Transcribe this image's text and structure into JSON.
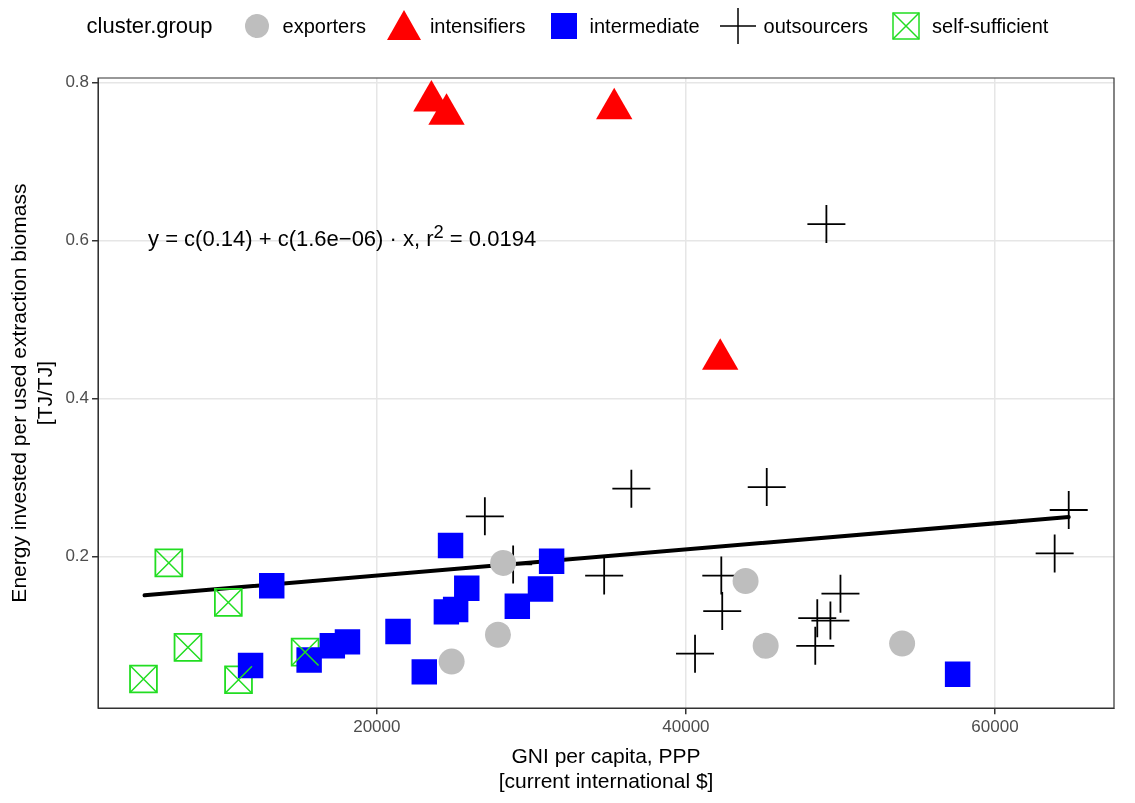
{
  "chart_data": {
    "type": "scatter",
    "xlabel": "GNI per capita, PPP\n[current international $]",
    "ylabel": "Energy invested per used extraction biomass\n[TJ/TJ]",
    "legend_title": "cluster.group",
    "legend": "top",
    "grid": true,
    "xlim": [
      1960,
      67700
    ],
    "ylim": [
      0.008,
      0.806
    ],
    "xticks": [
      20000,
      40000,
      60000
    ],
    "yticks": [
      0.2,
      0.4,
      0.6,
      0.8
    ],
    "annotations": [
      "y = c(0.14) + c(1.6e−06) · x,  r$^{2}$ = 0.0194"
    ],
    "series": [
      {
        "name": "exporters",
        "color": "#bebebe",
        "marker": "circle",
        "x": [
          28170,
          27840,
          24840,
          43860,
          45160,
          53990
        ],
        "values": [
          0.192,
          0.101,
          0.067,
          0.169,
          0.087,
          0.09
        ]
      },
      {
        "name": "intensifiers",
        "color": "#ff0000",
        "marker": "triangle",
        "x": [
          23530,
          24510,
          35360,
          42220
        ],
        "values": [
          0.777,
          0.76,
          0.767,
          0.45
        ]
      },
      {
        "name": "intermediate",
        "color": "#0000ff",
        "marker": "square",
        "x": [
          13200,
          24770,
          25820,
          24500,
          25100,
          31310,
          30590,
          29090,
          21370,
          18100,
          17120,
          15620,
          11830,
          23070,
          57580
        ],
        "values": [
          0.163,
          0.214,
          0.16,
          0.13,
          0.133,
          0.194,
          0.159,
          0.137,
          0.105,
          0.092,
          0.087,
          0.069,
          0.062,
          0.054,
          0.051
        ]
      },
      {
        "name": "outsourcers",
        "color": "#000000",
        "marker": "cross",
        "x": [
          49090,
          26990,
          28820,
          34710,
          36470,
          45230,
          64770,
          63860,
          42290,
          42350,
          40590,
          50000,
          48500,
          49350,
          48370
        ],
        "values": [
          0.621,
          0.251,
          0.19,
          0.176,
          0.286,
          0.288,
          0.259,
          0.204,
          0.176,
          0.131,
          0.077,
          0.153,
          0.122,
          0.119,
          0.087
        ]
      },
      {
        "name": "self-sufficient",
        "color": "#22dd22",
        "marker": "square-cross",
        "x": [
          6540,
          10390,
          7780,
          4900,
          11050,
          15360
        ],
        "values": [
          0.192,
          0.142,
          0.085,
          0.045,
          0.044,
          0.079
        ]
      },
      {
        "type": "line",
        "color": "#000000",
        "marker": "none",
        "x": [
          4970,
          64770
        ],
        "values": [
          0.151,
          0.25
        ]
      }
    ]
  }
}
